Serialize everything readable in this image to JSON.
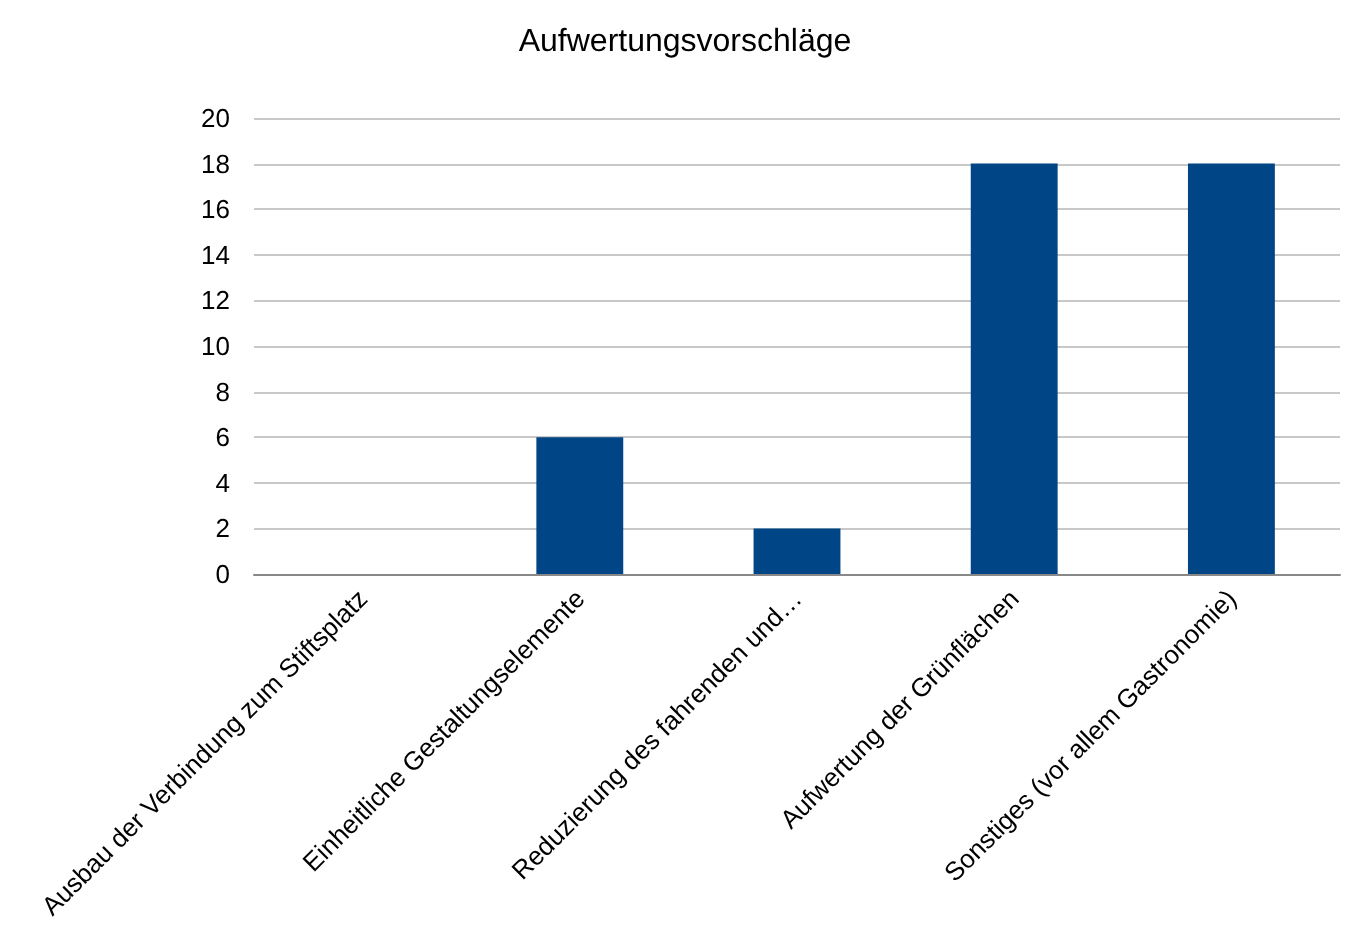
{
  "chart_data": {
    "type": "bar",
    "title": "Aufwertungsvorschläge",
    "categories": [
      "Ausbau der Verbindung zum Stiftsplatz",
      "Einheitliche Gestaltungselemente",
      "Reduzierung des fahrenden und…",
      "Aufwertung der Grünflächen",
      "Sonstiges (vor allem Gastronomie)"
    ],
    "values": [
      0,
      6,
      2,
      18,
      18
    ],
    "color": "#004586",
    "ylim": [
      0,
      20
    ],
    "yticks": [
      0,
      2,
      4,
      6,
      8,
      10,
      12,
      14,
      16,
      18,
      20
    ],
    "grid": "y"
  }
}
